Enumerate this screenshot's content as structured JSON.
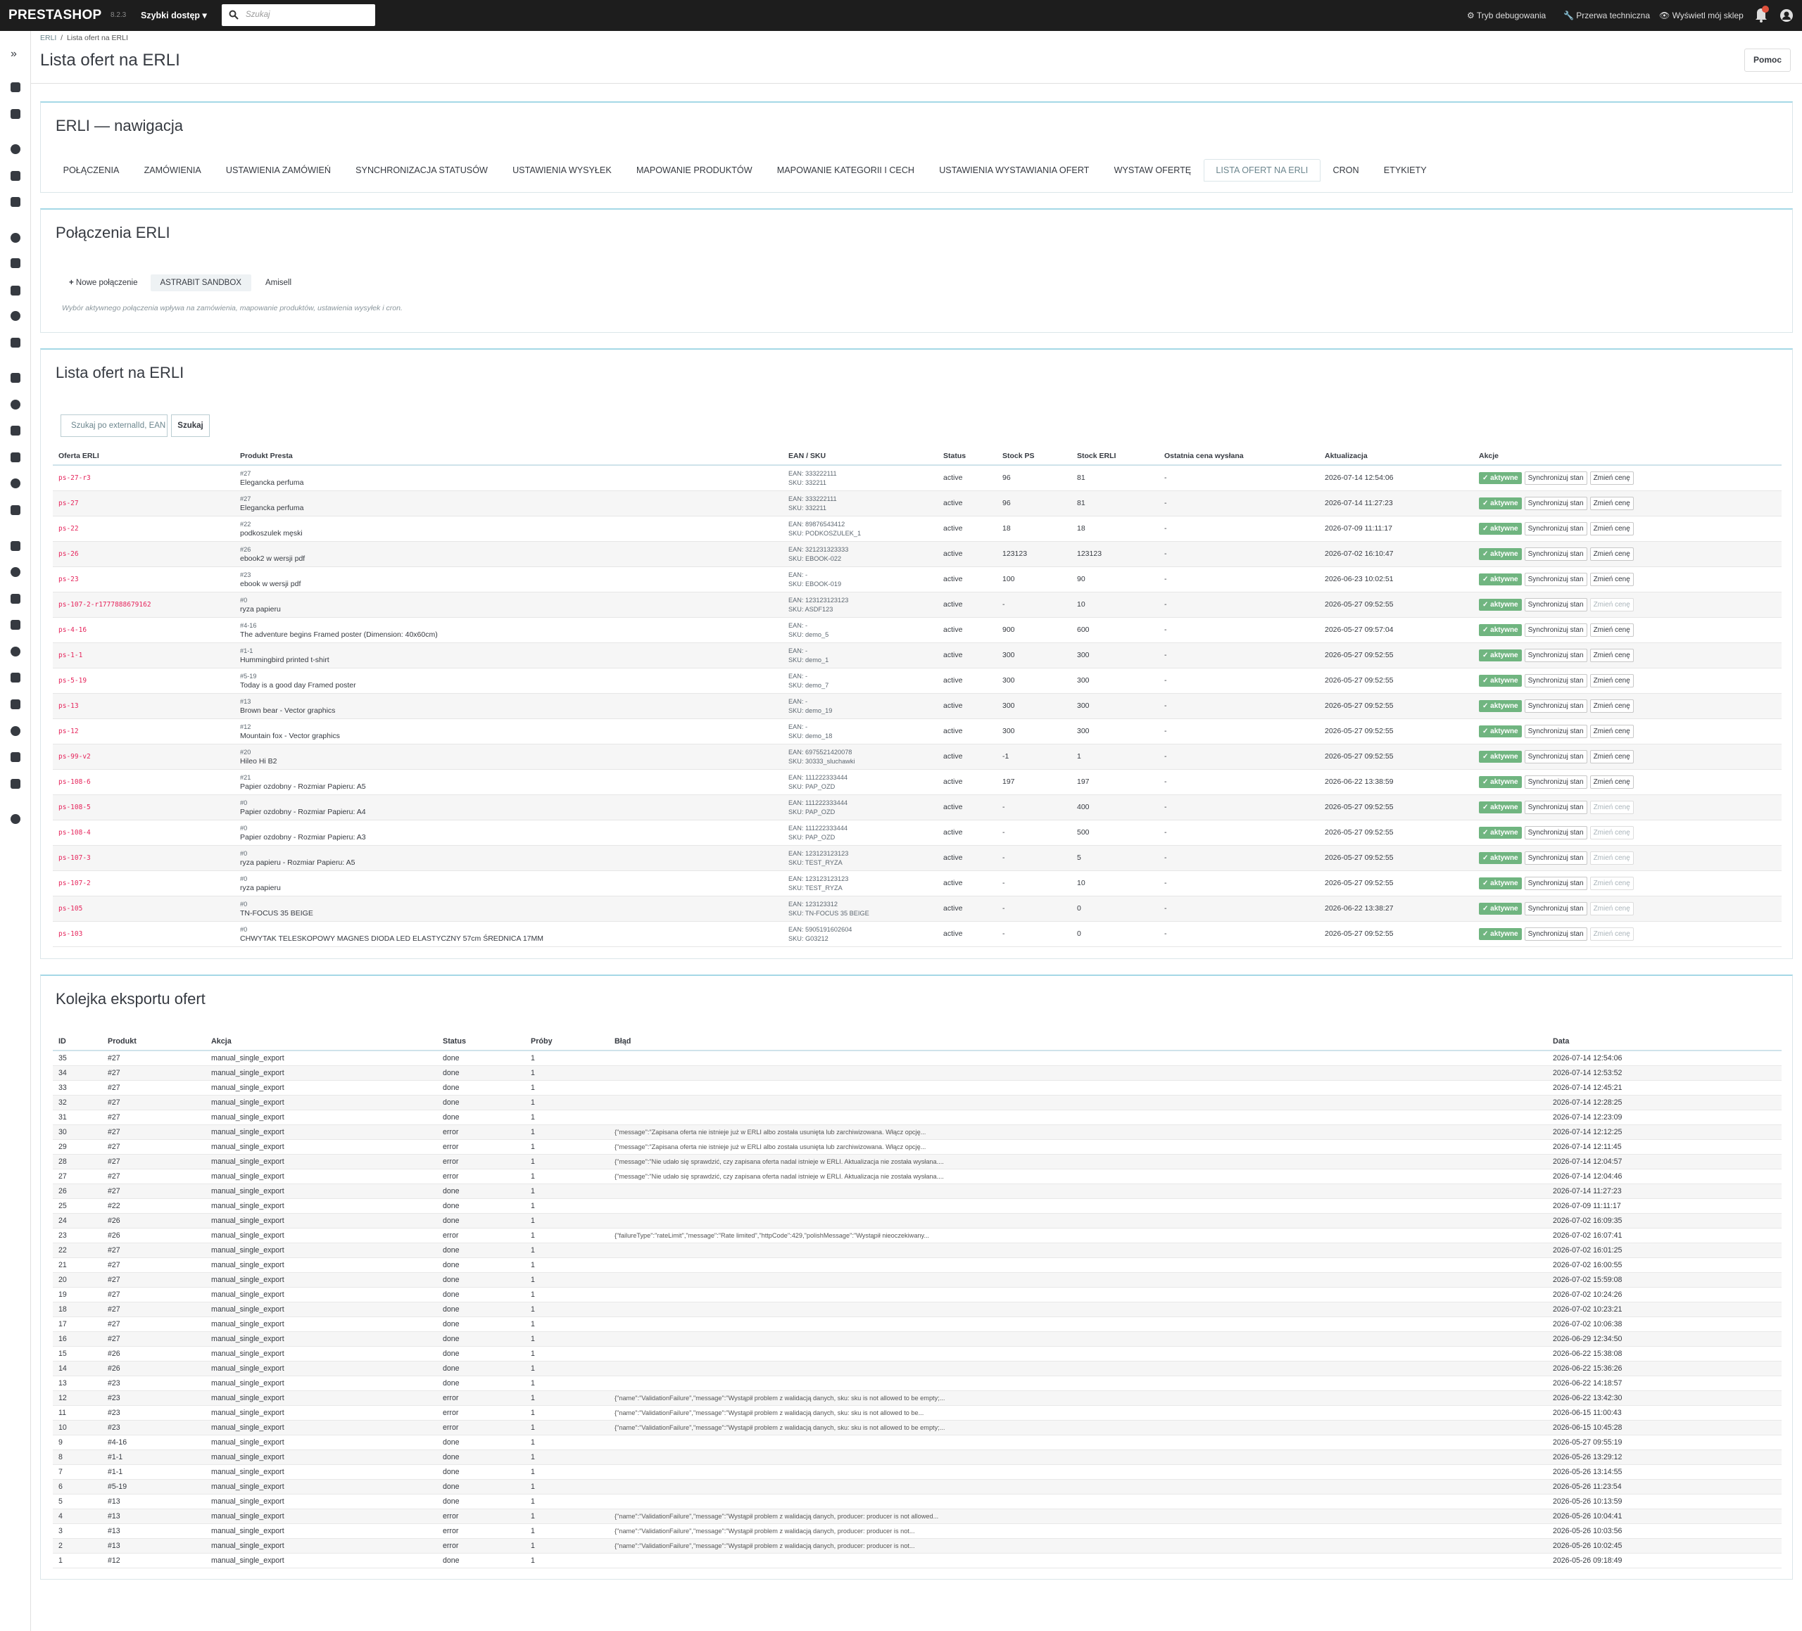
{
  "topbar": {
    "logo": "PRESTASHOP",
    "version": "8.2.3",
    "quick_access": "Szybki dostęp",
    "search_placeholder": "Szukaj",
    "links": [
      "Tryb debugowania",
      "Przerwa techniczna",
      "Wyświetl mój sklep"
    ]
  },
  "breadcrumb": [
    "ERLI",
    "Lista ofert na ERLI"
  ],
  "page_title": "Lista ofert na ERLI",
  "help_button": "Pomoc",
  "navigation": {
    "title": "ERLI — nawigacja",
    "active_tab": 9,
    "tabs": [
      "POŁĄCZENIA",
      "ZAMÓWIENIA",
      "USTAWIENIA ZAMÓWIEŃ",
      "SYNCHRONIZACJA STATUSÓW",
      "USTAWIENIA WYSYŁEK",
      "MAPOWANIE PRODUKTÓW",
      "MAPOWANIE KATEGORII I CECH",
      "USTAWIENIA WYSTAWIANIA OFERT",
      "WYSTAW OFERTĘ",
      "LISTA OFERT NA ERLI",
      "CRON",
      "ETYKIETY"
    ]
  },
  "connections": {
    "title": "Połączenia ERLI",
    "new_button": "Nowe połączenie",
    "items": [
      "ASTRABIT SANDBOX",
      "Amisell"
    ],
    "active_item": 0,
    "note": "Wybór aktywnego połączenia wpływa na zamówienia, mapowanie produktów, ustawienia wysyłek i cron."
  },
  "offers": {
    "title": "Lista ofert na ERLI",
    "search_placeholder": "Szukaj po externalId, EAN",
    "search_button": "Szukaj",
    "columns": [
      "Oferta ERLI",
      "Produkt Presta",
      "EAN / SKU",
      "Status",
      "Stock PS",
      "Stock ERLI",
      "Ostatnia cena wysłana",
      "Aktualizacja",
      "Akcje"
    ],
    "actions": {
      "active": "✓ aktywne",
      "sync": "Synchronizuj stan",
      "change_price": "Zmień cenę"
    },
    "rows": [
      {
        "offer": "ps-27-r3",
        "product_id": "#27",
        "product": "Elegancka perfuma",
        "ean": "EAN: 333222111",
        "sku": "SKU: 332211",
        "status": "active",
        "stock_ps": 96,
        "stock_erli": 81,
        "last_price": "-",
        "updated": "2026-07-14 12:54:06",
        "price_change_enabled": true
      },
      {
        "offer": "ps-27",
        "product_id": "#27",
        "product": "Elegancka perfuma",
        "ean": "EAN: 333222111",
        "sku": "SKU: 332211",
        "status": "active",
        "stock_ps": 96,
        "stock_erli": 81,
        "last_price": "-",
        "updated": "2026-07-14 11:27:23",
        "price_change_enabled": true
      },
      {
        "offer": "ps-22",
        "product_id": "#22",
        "product": "podkoszulek męski",
        "ean": "EAN: 89876543412",
        "sku": "SKU: PODKOSZULEK_1",
        "status": "active",
        "stock_ps": 18,
        "stock_erli": 18,
        "last_price": "-",
        "updated": "2026-07-09 11:11:17",
        "price_change_enabled": true
      },
      {
        "offer": "ps-26",
        "product_id": "#26",
        "product": "ebook2 w wersji pdf",
        "ean": "EAN: 321231323333",
        "sku": "SKU: EBOOK-022",
        "status": "active",
        "stock_ps": 123123,
        "stock_erli": 123123,
        "last_price": "-",
        "updated": "2026-07-02 16:10:47",
        "price_change_enabled": true
      },
      {
        "offer": "ps-23",
        "product_id": "#23",
        "product": "ebook w wersji pdf",
        "ean": "EAN: -",
        "sku": "SKU: EBOOK-019",
        "status": "active",
        "stock_ps": 100,
        "stock_erli": 90,
        "last_price": "-",
        "updated": "2026-06-23 10:02:51",
        "price_change_enabled": true
      },
      {
        "offer": "ps-107-2-r1777888679162",
        "product_id": "#0",
        "product": "ryza papieru",
        "ean": "EAN: 123123123123",
        "sku": "SKU: ASDF123",
        "status": "active",
        "stock_ps": "-",
        "stock_erli": 10,
        "last_price": "-",
        "updated": "2026-05-27 09:52:55",
        "price_change_enabled": false
      },
      {
        "offer": "ps-4-16",
        "product_id": "#4-16",
        "product": "The adventure begins Framed poster (Dimension: 40x60cm)",
        "ean": "EAN: -",
        "sku": "SKU: demo_5",
        "status": "active",
        "stock_ps": 900,
        "stock_erli": 600,
        "last_price": "-",
        "updated": "2026-05-27 09:57:04",
        "price_change_enabled": true
      },
      {
        "offer": "ps-1-1",
        "product_id": "#1-1",
        "product": "Hummingbird printed t-shirt",
        "ean": "EAN: -",
        "sku": "SKU: demo_1",
        "status": "active",
        "stock_ps": 300,
        "stock_erli": 300,
        "last_price": "-",
        "updated": "2026-05-27 09:52:55",
        "price_change_enabled": true
      },
      {
        "offer": "ps-5-19",
        "product_id": "#5-19",
        "product": "Today is a good day Framed poster",
        "ean": "EAN: -",
        "sku": "SKU: demo_7",
        "status": "active",
        "stock_ps": 300,
        "stock_erli": 300,
        "last_price": "-",
        "updated": "2026-05-27 09:52:55",
        "price_change_enabled": true
      },
      {
        "offer": "ps-13",
        "product_id": "#13",
        "product": "Brown bear - Vector graphics",
        "ean": "EAN: -",
        "sku": "SKU: demo_19",
        "status": "active",
        "stock_ps": 300,
        "stock_erli": 300,
        "last_price": "-",
        "updated": "2026-05-27 09:52:55",
        "price_change_enabled": true
      },
      {
        "offer": "ps-12",
        "product_id": "#12",
        "product": "Mountain fox - Vector graphics",
        "ean": "EAN: -",
        "sku": "SKU: demo_18",
        "status": "active",
        "stock_ps": 300,
        "stock_erli": 300,
        "last_price": "-",
        "updated": "2026-05-27 09:52:55",
        "price_change_enabled": true
      },
      {
        "offer": "ps-99-v2",
        "product_id": "#20",
        "product": "Hileo Hi B2",
        "ean": "EAN: 6975521420078",
        "sku": "SKU: 30333_sluchawki",
        "status": "active",
        "stock_ps": -1,
        "stock_erli": 1,
        "last_price": "-",
        "updated": "2026-05-27 09:52:55",
        "price_change_enabled": true
      },
      {
        "offer": "ps-108-6",
        "product_id": "#21",
        "product": "Papier ozdobny - Rozmiar Papieru: A5",
        "ean": "EAN: 111222333444",
        "sku": "SKU: PAP_OZD",
        "status": "active",
        "stock_ps": 197,
        "stock_erli": 197,
        "last_price": "-",
        "updated": "2026-06-22 13:38:59",
        "price_change_enabled": true
      },
      {
        "offer": "ps-108-5",
        "product_id": "#0",
        "product": "Papier ozdobny - Rozmiar Papieru: A4",
        "ean": "EAN: 111222333444",
        "sku": "SKU: PAP_OZD",
        "status": "active",
        "stock_ps": "-",
        "stock_erli": 400,
        "last_price": "-",
        "updated": "2026-05-27 09:52:55",
        "price_change_enabled": false
      },
      {
        "offer": "ps-108-4",
        "product_id": "#0",
        "product": "Papier ozdobny - Rozmiar Papieru: A3",
        "ean": "EAN: 111222333444",
        "sku": "SKU: PAP_OZD",
        "status": "active",
        "stock_ps": "-",
        "stock_erli": 500,
        "last_price": "-",
        "updated": "2026-05-27 09:52:55",
        "price_change_enabled": false
      },
      {
        "offer": "ps-107-3",
        "product_id": "#0",
        "product": "ryza papieru - Rozmiar Papieru: A5",
        "ean": "EAN: 123123123123",
        "sku": "SKU: TEST_RYZA",
        "status": "active",
        "stock_ps": "-",
        "stock_erli": 5,
        "last_price": "-",
        "updated": "2026-05-27 09:52:55",
        "price_change_enabled": false
      },
      {
        "offer": "ps-107-2",
        "product_id": "#0",
        "product": "ryza papieru",
        "ean": "EAN: 123123123123",
        "sku": "SKU: TEST_RYZA",
        "status": "active",
        "stock_ps": "-",
        "stock_erli": 10,
        "last_price": "-",
        "updated": "2026-05-27 09:52:55",
        "price_change_enabled": false
      },
      {
        "offer": "ps-105",
        "product_id": "#0",
        "product": "TN-FOCUS 35 BEIGE",
        "ean": "EAN: 123123312",
        "sku": "SKU: TN-FOCUS 35 BEIGE",
        "status": "active",
        "stock_ps": "-",
        "stock_erli": 0,
        "last_price": "-",
        "updated": "2026-06-22 13:38:27",
        "price_change_enabled": false
      },
      {
        "offer": "ps-103",
        "product_id": "#0",
        "product": "CHWYTAK TELESKOPOWY MAGNES DIODA LED ELASTYCZNY 57cm ŚREDNICA 17MM",
        "ean": "EAN: 5905191602604",
        "sku": "SKU: G03212",
        "status": "active",
        "stock_ps": "-",
        "stock_erli": 0,
        "last_price": "-",
        "updated": "2026-05-27 09:52:55",
        "price_change_enabled": false
      }
    ]
  },
  "queue": {
    "title": "Kolejka eksportu ofert",
    "columns": [
      "ID",
      "Produkt",
      "Akcja",
      "Status",
      "Próby",
      "Błąd",
      "Data"
    ],
    "rows": [
      [
        35,
        "#27",
        "manual_single_export",
        "done",
        1,
        null,
        "2026-07-14 12:54:06"
      ],
      [
        34,
        "#27",
        "manual_single_export",
        "done",
        1,
        null,
        "2026-07-14 12:53:52"
      ],
      [
        33,
        "#27",
        "manual_single_export",
        "done",
        1,
        null,
        "2026-07-14 12:45:21"
      ],
      [
        32,
        "#27",
        "manual_single_export",
        "done",
        1,
        null,
        "2026-07-14 12:28:25"
      ],
      [
        31,
        "#27",
        "manual_single_export",
        "done",
        1,
        null,
        "2026-07-14 12:23:09"
      ],
      [
        30,
        "#27",
        "manual_single_export",
        "error",
        1,
        "{\"message\":\"Zapisana oferta nie istnieje już w ERLI albo została usunięta lub zarchiwizowana. Włącz opcję...",
        "2026-07-14 12:12:25"
      ],
      [
        29,
        "#27",
        "manual_single_export",
        "error",
        1,
        "{\"message\":\"Zapisana oferta nie istnieje już w ERLI albo została usunięta lub zarchiwizowana. Włącz opcję...",
        "2026-07-14 12:11:45"
      ],
      [
        28,
        "#27",
        "manual_single_export",
        "error",
        1,
        "{\"message\":\"Nie udało się sprawdzić, czy zapisana oferta nadal istnieje w ERLI. Aktualizacja nie została wysłana....",
        "2026-07-14 12:04:57"
      ],
      [
        27,
        "#27",
        "manual_single_export",
        "error",
        1,
        "{\"message\":\"Nie udało się sprawdzić, czy zapisana oferta nadal istnieje w ERLI. Aktualizacja nie została wysłana....",
        "2026-07-14 12:04:46"
      ],
      [
        26,
        "#27",
        "manual_single_export",
        "done",
        1,
        null,
        "2026-07-14 11:27:23"
      ],
      [
        25,
        "#22",
        "manual_single_export",
        "done",
        1,
        null,
        "2026-07-09 11:11:17"
      ],
      [
        24,
        "#26",
        "manual_single_export",
        "done",
        1,
        null,
        "2026-07-02 16:09:35"
      ],
      [
        23,
        "#26",
        "manual_single_export",
        "error",
        1,
        "{\"failureType\":\"rateLimit\",\"message\":\"Rate limited\",\"httpCode\":429,\"polishMessage\":\"Wystąpił nieoczekiwany...",
        "2026-07-02 16:07:41"
      ],
      [
        22,
        "#27",
        "manual_single_export",
        "done",
        1,
        null,
        "2026-07-02 16:01:25"
      ],
      [
        21,
        "#27",
        "manual_single_export",
        "done",
        1,
        null,
        "2026-07-02 16:00:55"
      ],
      [
        20,
        "#27",
        "manual_single_export",
        "done",
        1,
        null,
        "2026-07-02 15:59:08"
      ],
      [
        19,
        "#27",
        "manual_single_export",
        "done",
        1,
        null,
        "2026-07-02 10:24:26"
      ],
      [
        18,
        "#27",
        "manual_single_export",
        "done",
        1,
        null,
        "2026-07-02 10:23:21"
      ],
      [
        17,
        "#27",
        "manual_single_export",
        "done",
        1,
        null,
        "2026-07-02 10:06:38"
      ],
      [
        16,
        "#27",
        "manual_single_export",
        "done",
        1,
        null,
        "2026-06-29 12:34:50"
      ],
      [
        15,
        "#26",
        "manual_single_export",
        "done",
        1,
        null,
        "2026-06-22 15:38:08"
      ],
      [
        14,
        "#26",
        "manual_single_export",
        "done",
        1,
        null,
        "2026-06-22 15:36:26"
      ],
      [
        13,
        "#23",
        "manual_single_export",
        "done",
        1,
        null,
        "2026-06-22 14:18:57"
      ],
      [
        12,
        "#23",
        "manual_single_export",
        "error",
        1,
        "{\"name\":\"ValidationFailure\",\"message\":\"Wystąpił problem z walidacją danych, sku: sku is not allowed to be empty;...",
        "2026-06-22 13:42:30"
      ],
      [
        11,
        "#23",
        "manual_single_export",
        "error",
        1,
        "{\"name\":\"ValidationFailure\",\"message\":\"Wystąpił problem z walidacją danych, sku: sku is not allowed to be...",
        "2026-06-15 11:00:43"
      ],
      [
        10,
        "#23",
        "manual_single_export",
        "error",
        1,
        "{\"name\":\"ValidationFailure\",\"message\":\"Wystąpił problem z walidacją danych, sku: sku is not allowed to be empty;...",
        "2026-06-15 10:45:28"
      ],
      [
        9,
        "#4-16",
        "manual_single_export",
        "done",
        1,
        null,
        "2026-05-27 09:55:19"
      ],
      [
        8,
        "#1-1",
        "manual_single_export",
        "done",
        1,
        null,
        "2026-05-26 13:29:12"
      ],
      [
        7,
        "#1-1",
        "manual_single_export",
        "done",
        1,
        null,
        "2026-05-26 13:14:55"
      ],
      [
        6,
        "#5-19",
        "manual_single_export",
        "done",
        1,
        null,
        "2026-05-26 11:23:54"
      ],
      [
        5,
        "#13",
        "manual_single_export",
        "done",
        1,
        null,
        "2026-05-26 10:13:59"
      ],
      [
        4,
        "#13",
        "manual_single_export",
        "error",
        1,
        "{\"name\":\"ValidationFailure\",\"message\":\"Wystąpił problem z walidacją danych, producer: producer is not allowed...",
        "2026-05-26 10:04:41"
      ],
      [
        3,
        "#13",
        "manual_single_export",
        "error",
        1,
        "{\"name\":\"ValidationFailure\",\"message\":\"Wystąpił problem z walidacją danych, producer: producer is not...",
        "2026-05-26 10:03:56"
      ],
      [
        2,
        "#13",
        "manual_single_export",
        "error",
        1,
        "{\"name\":\"ValidationFailure\",\"message\":\"Wystąpił problem z walidacją danych, producer: producer is not...",
        "2026-05-26 10:02:45"
      ],
      [
        1,
        "#12",
        "manual_single_export",
        "done",
        1,
        null,
        "2026-05-26 09:18:49"
      ]
    ]
  }
}
